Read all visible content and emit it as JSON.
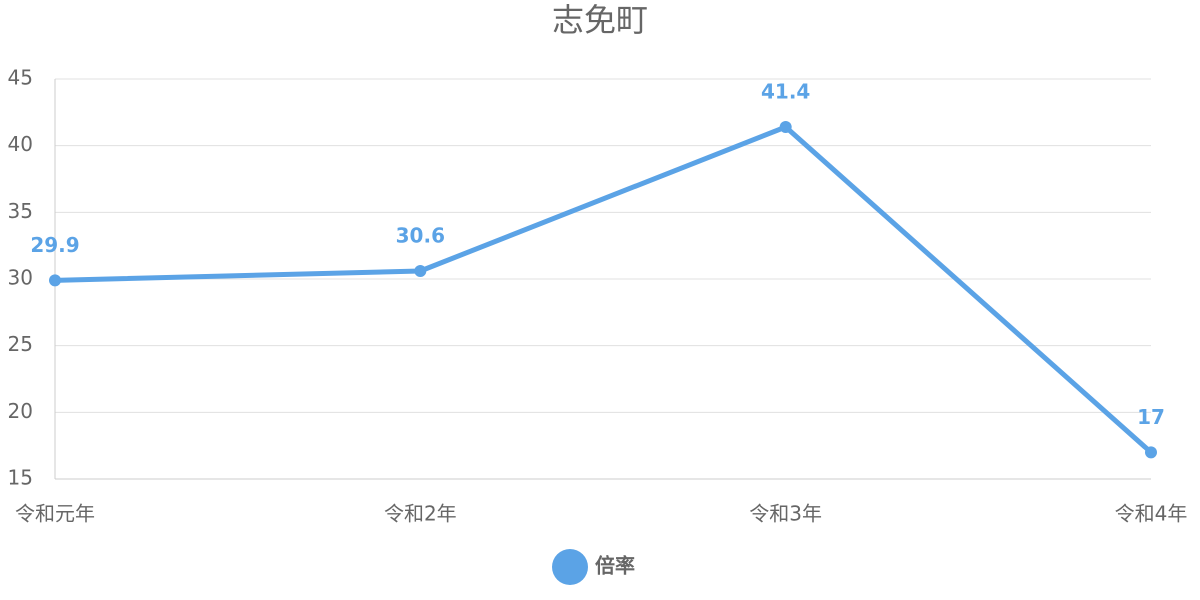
{
  "chart_data": {
    "type": "line",
    "title": "志免町",
    "categories": [
      "令和元年",
      "令和2年",
      "令和3年",
      "令和4年"
    ],
    "series": [
      {
        "name": "倍率",
        "color": "#5ba3e6",
        "values": [
          29.9,
          30.6,
          41.4,
          17
        ]
      }
    ],
    "ylim": [
      15,
      45
    ],
    "yticks": [
      15,
      20,
      25,
      30,
      35,
      40,
      45
    ],
    "grid": true,
    "legend": "bottom"
  }
}
